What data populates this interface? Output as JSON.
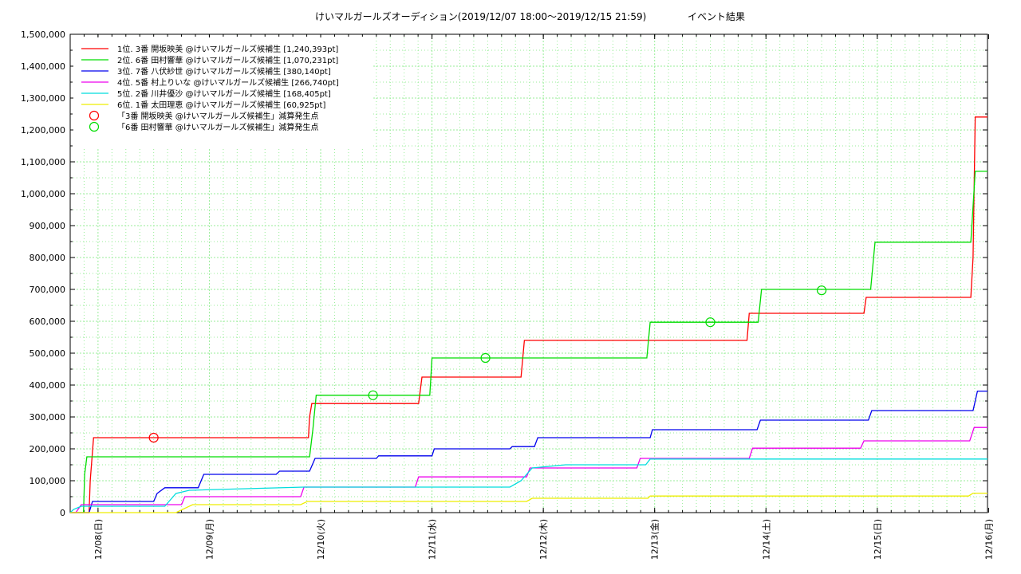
{
  "chart_data": {
    "type": "line",
    "title": "けいマルガールズオーディション(2019/12/07 18:00～2019/12/15 21:59)",
    "subtitle": "イベント結果",
    "ylim": [
      0,
      1500000
    ],
    "y_ticks": [
      "0",
      "100,000",
      "200,000",
      "300,000",
      "400,000",
      "500,000",
      "600,000",
      "700,000",
      "800,000",
      "900,000",
      "1,000,000",
      "1,100,000",
      "1,200,000",
      "1,300,000",
      "1,400,000",
      "1,500,000"
    ],
    "x_range_days": [
      7.75,
      15.99
    ],
    "x_ticks": [
      {
        "day": 8,
        "label": "12/08(日)"
      },
      {
        "day": 9,
        "label": "12/09(月)"
      },
      {
        "day": 10,
        "label": "12/10(火)"
      },
      {
        "day": 11,
        "label": "12/11(水)"
      },
      {
        "day": 12,
        "label": "12/12(木)"
      },
      {
        "day": 13,
        "label": "12/13(金)"
      },
      {
        "day": 14,
        "label": "12/14(土)"
      },
      {
        "day": 15,
        "label": "12/15(日)"
      },
      {
        "day": 16,
        "label": "12/16(月)"
      }
    ],
    "grid": true,
    "legend_position": "top-left",
    "series": [
      {
        "name": "1位. 3番 開坂映美 @けいマルガールズ候補生 [1,240,393pt]",
        "color": "#ff0000",
        "points": [
          [
            7.75,
            0
          ],
          [
            7.92,
            0
          ],
          [
            7.93,
            100000
          ],
          [
            7.96,
            235000
          ],
          [
            9.89,
            235000
          ],
          [
            9.9,
            300000
          ],
          [
            9.92,
            342000
          ],
          [
            10.88,
            342000
          ],
          [
            10.91,
            425000
          ],
          [
            11.8,
            425000
          ],
          [
            11.83,
            540000
          ],
          [
            13.83,
            540000
          ],
          [
            13.85,
            625000
          ],
          [
            14.88,
            625000
          ],
          [
            14.9,
            675000
          ],
          [
            15.84,
            675000
          ],
          [
            15.86,
            800000
          ],
          [
            15.88,
            1240393
          ],
          [
            15.99,
            1240393
          ]
        ]
      },
      {
        "name": "2位. 6番 田村響華 @けいマルガールズ候補生 [1,070,231pt]",
        "color": "#00dd00",
        "points": [
          [
            7.75,
            0
          ],
          [
            7.87,
            0
          ],
          [
            7.88,
            120000
          ],
          [
            7.9,
            175000
          ],
          [
            9.9,
            175000
          ],
          [
            9.93,
            260000
          ],
          [
            9.96,
            368000
          ],
          [
            10.98,
            368000
          ],
          [
            11,
            485000
          ],
          [
            12.93,
            485000
          ],
          [
            12.96,
            597000
          ],
          [
            13.93,
            597000
          ],
          [
            13.96,
            700000
          ],
          [
            14.94,
            700000
          ],
          [
            14.98,
            848000
          ],
          [
            15.84,
            848000
          ],
          [
            15.88,
            1070231
          ],
          [
            15.99,
            1070231
          ]
        ]
      },
      {
        "name": "3位. 7番 八伏紗世 @けいマルガールズ候補生 [380,140pt]",
        "color": "#0000ee",
        "points": [
          [
            7.75,
            0
          ],
          [
            7.92,
            0
          ],
          [
            7.95,
            35000
          ],
          [
            8.5,
            35000
          ],
          [
            8.53,
            60000
          ],
          [
            8.6,
            78000
          ],
          [
            8.9,
            78000
          ],
          [
            8.95,
            120000
          ],
          [
            9.6,
            120000
          ],
          [
            9.63,
            130000
          ],
          [
            9.9,
            130000
          ],
          [
            9.95,
            170000
          ],
          [
            10.5,
            170000
          ],
          [
            10.52,
            178000
          ],
          [
            11,
            178000
          ],
          [
            11.02,
            200000
          ],
          [
            11.7,
            200000
          ],
          [
            11.72,
            207000
          ],
          [
            11.92,
            207000
          ],
          [
            11.95,
            235000
          ],
          [
            12.96,
            235000
          ],
          [
            12.98,
            260000
          ],
          [
            13.92,
            260000
          ],
          [
            13.95,
            290000
          ],
          [
            14.92,
            290000
          ],
          [
            14.95,
            320000
          ],
          [
            15.86,
            320000
          ],
          [
            15.9,
            381000
          ],
          [
            15.99,
            381000
          ]
        ]
      },
      {
        "name": "4位. 5番 村上りいな @けいマルガールズ候補生 [266,740pt]",
        "color": "#ee00ee",
        "points": [
          [
            7.75,
            0
          ],
          [
            7.8,
            0
          ],
          [
            7.85,
            25000
          ],
          [
            8.75,
            25000
          ],
          [
            8.78,
            50000
          ],
          [
            9.82,
            50000
          ],
          [
            9.85,
            80000
          ],
          [
            10.85,
            80000
          ],
          [
            10.88,
            112000
          ],
          [
            11.85,
            112000
          ],
          [
            11.88,
            140000
          ],
          [
            12.84,
            140000
          ],
          [
            12.87,
            170000
          ],
          [
            13.85,
            170000
          ],
          [
            13.88,
            202000
          ],
          [
            14.85,
            202000
          ],
          [
            14.88,
            225000
          ],
          [
            15.83,
            225000
          ],
          [
            15.87,
            267000
          ],
          [
            15.99,
            267000
          ]
        ]
      },
      {
        "name": "5位. 2番 川井優沙 @けいマルガールズ候補生 [168,405pt]",
        "color": "#00dddd",
        "points": [
          [
            7.75,
            0
          ],
          [
            7.78,
            10000
          ],
          [
            7.85,
            20000
          ],
          [
            8.6,
            20000
          ],
          [
            8.65,
            40000
          ],
          [
            8.7,
            60000
          ],
          [
            8.82,
            70000
          ],
          [
            9.85,
            80000
          ],
          [
            11.7,
            80000
          ],
          [
            11.8,
            100000
          ],
          [
            11.9,
            140000
          ],
          [
            12.2,
            150000
          ],
          [
            12.92,
            150000
          ],
          [
            12.96,
            168000
          ],
          [
            15.99,
            168000
          ]
        ]
      },
      {
        "name": "6位. 1番 太田理恵 @けいマルガールズ候補生 [60,925pt]",
        "color": "#eeee00",
        "points": [
          [
            7.75,
            0
          ],
          [
            8.7,
            0
          ],
          [
            8.85,
            25000
          ],
          [
            9.82,
            25000
          ],
          [
            9.88,
            35000
          ],
          [
            11.85,
            35000
          ],
          [
            11.9,
            45000
          ],
          [
            12.94,
            45000
          ],
          [
            12.96,
            52000
          ],
          [
            15.82,
            52000
          ],
          [
            15.86,
            61000
          ],
          [
            15.99,
            61000
          ]
        ]
      }
    ],
    "markers": [
      {
        "name": "「3番 開坂映美 @けいマルガールズ候補生」減算発生点",
        "color": "#ff0000",
        "points": [
          [
            8.5,
            235000
          ]
        ]
      },
      {
        "name": "「6番 田村響華 @けいマルガールズ候補生」減算発生点",
        "color": "#00dd00",
        "points": [
          [
            10.47,
            368000
          ],
          [
            11.48,
            485000
          ],
          [
            13.5,
            597000
          ],
          [
            14.5,
            697000
          ]
        ]
      }
    ]
  }
}
